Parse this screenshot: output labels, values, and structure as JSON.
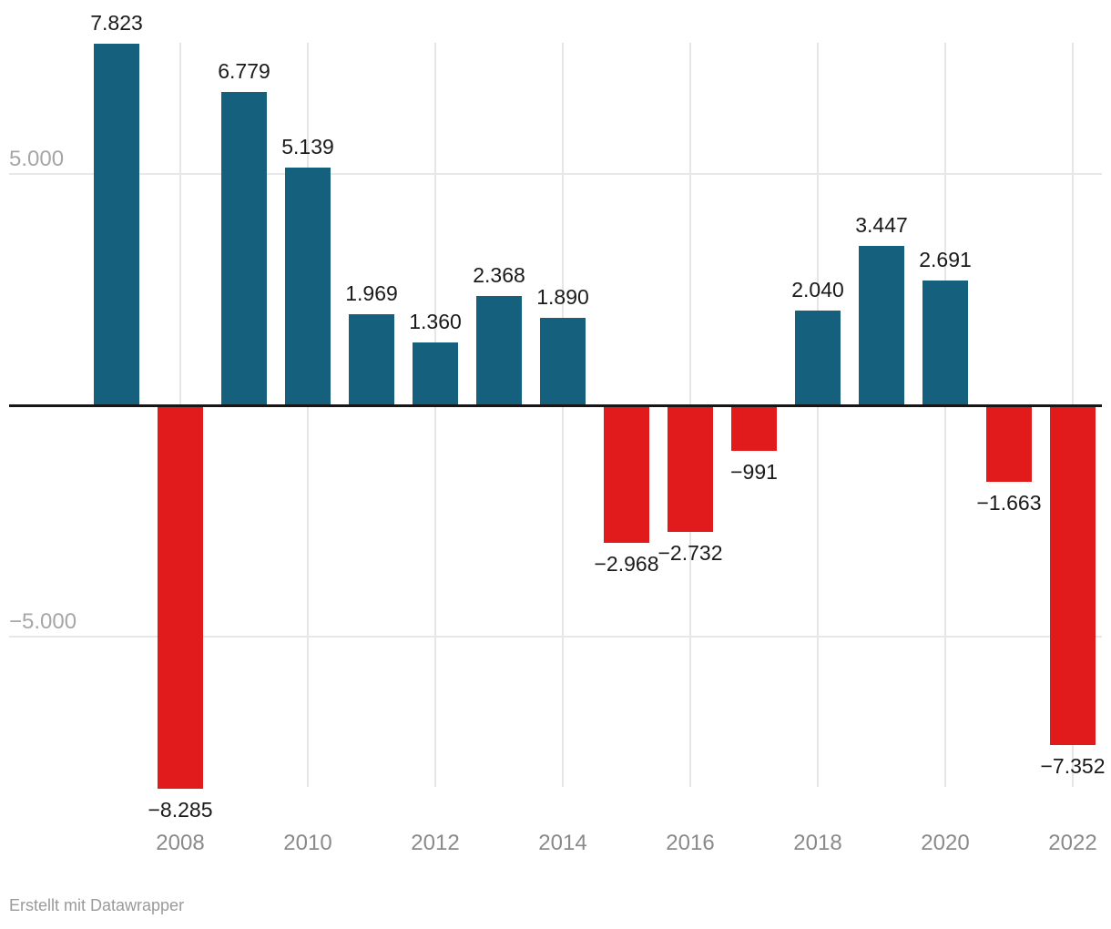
{
  "footer": {
    "attribution": "Erstellt mit Datawrapper"
  },
  "chart_data": {
    "type": "bar",
    "x": [
      2007,
      2008,
      2009,
      2010,
      2011,
      2012,
      2013,
      2014,
      2015,
      2016,
      2017,
      2018,
      2019,
      2020,
      2021,
      2022
    ],
    "values": [
      7823,
      -8285,
      6779,
      5139,
      1969,
      1360,
      2368,
      1890,
      -2968,
      -2732,
      -991,
      2040,
      3447,
      2691,
      -1663,
      -7352
    ],
    "value_labels": [
      "7.823",
      "−8.285",
      "6.779",
      "5.139",
      "1.969",
      "1.360",
      "2.368",
      "1.890",
      "−2.968",
      "−2.732",
      "−991",
      "2.040",
      "3.447",
      "2.691",
      "−1.663",
      "−7.352"
    ],
    "x_tick_labels": [
      {
        "year": 2008,
        "label": "2008"
      },
      {
        "year": 2010,
        "label": "2010"
      },
      {
        "year": 2012,
        "label": "2012"
      },
      {
        "year": 2014,
        "label": "2014"
      },
      {
        "year": 2016,
        "label": "2016"
      },
      {
        "year": 2018,
        "label": "2018"
      },
      {
        "year": 2020,
        "label": "2020"
      },
      {
        "year": 2022,
        "label": "2022"
      }
    ],
    "y_ticks": [
      {
        "value": 5000,
        "label": "5.000"
      },
      {
        "value": -5000,
        "label": "−5.000"
      }
    ],
    "title": "",
    "xlabel": "",
    "ylabel": "",
    "ylim": [
      -8285,
      7854
    ],
    "grid": true,
    "legend": false,
    "colors": {
      "positive": "#15607d",
      "negative": "#e11a1b",
      "zero_line": "#161616",
      "grid": "#e6e6e6",
      "value_label": "#1a1a1a",
      "y_tick": "#a6a6a6",
      "x_tick": "#8a8a8a"
    }
  }
}
